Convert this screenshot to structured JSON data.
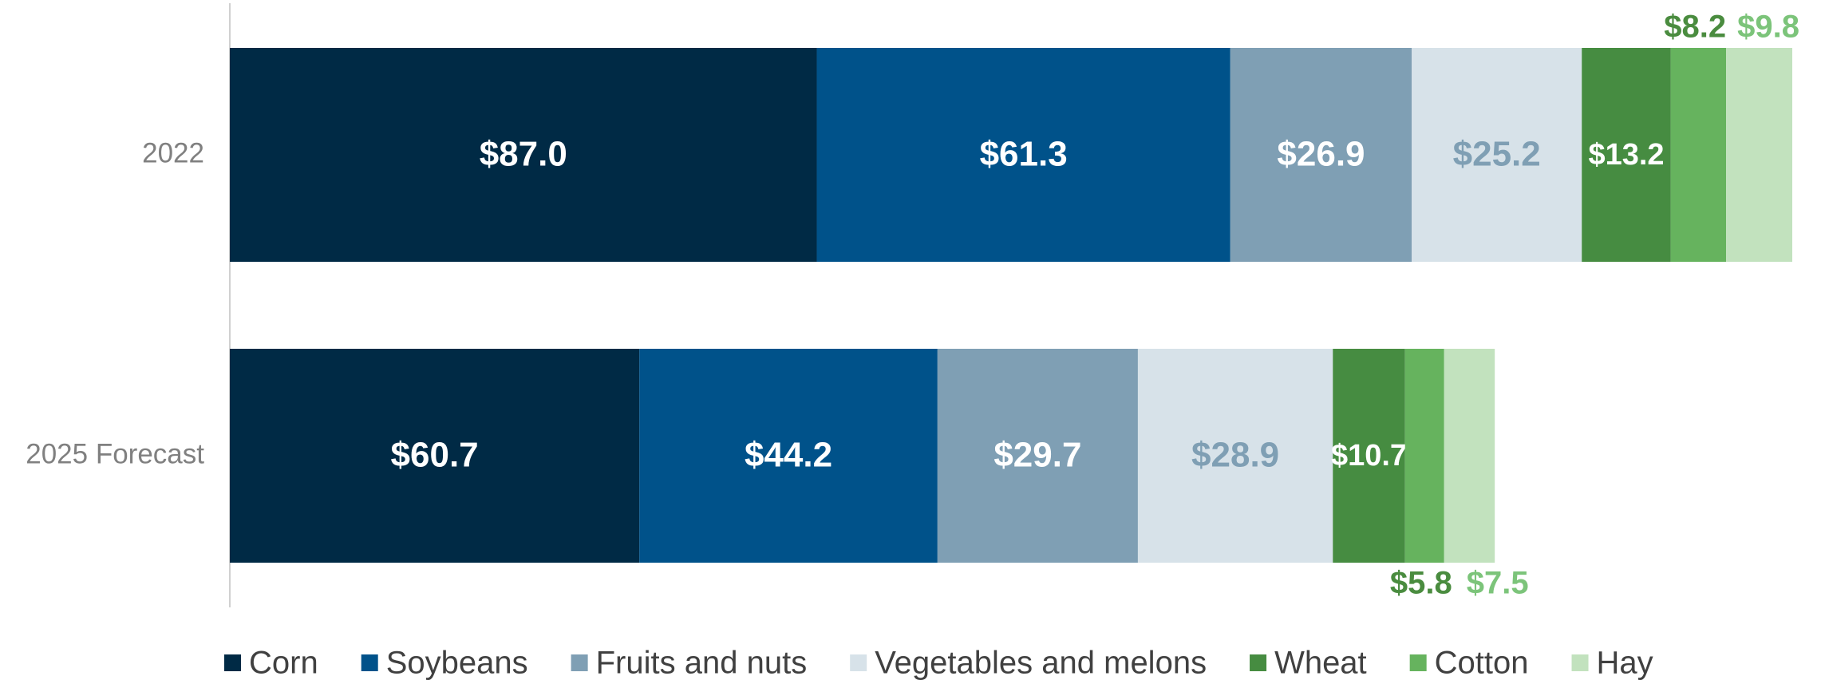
{
  "chart_data": {
    "type": "bar",
    "orientation": "horizontal",
    "stacked": true,
    "categories": [
      "2022",
      "2025 Forecast"
    ],
    "series": [
      {
        "name": "Corn",
        "color": "#002a45",
        "values": [
          87.0,
          60.7
        ],
        "value_labels": [
          "$87.0",
          "$60.7"
        ]
      },
      {
        "name": "Soybeans",
        "color": "#00528a",
        "values": [
          61.3,
          44.2
        ],
        "value_labels": [
          "$61.3",
          "$44.2"
        ]
      },
      {
        "name": "Fruits and nuts",
        "color": "#7f9fb4",
        "values": [
          26.9,
          29.7
        ],
        "value_labels": [
          "$26.9",
          "$29.7"
        ]
      },
      {
        "name": "Vegetables and melons",
        "color": "#d7e2e9",
        "values": [
          25.2,
          28.9
        ],
        "value_labels": [
          "$25.2",
          "$28.9"
        ]
      },
      {
        "name": "Wheat",
        "color": "#468c41",
        "values": [
          13.2,
          10.7
        ],
        "value_labels": [
          "$13.2",
          "$10.7"
        ]
      },
      {
        "name": "Cotton",
        "color": "#66b35e",
        "values": [
          8.2,
          5.8
        ],
        "value_labels": [
          "$8.2",
          "$5.8"
        ]
      },
      {
        "name": "Hay",
        "color": "#c2e2be",
        "values": [
          9.8,
          7.5
        ],
        "value_labels": [
          "$9.8",
          "$7.5"
        ]
      }
    ],
    "legend": "bottom"
  }
}
